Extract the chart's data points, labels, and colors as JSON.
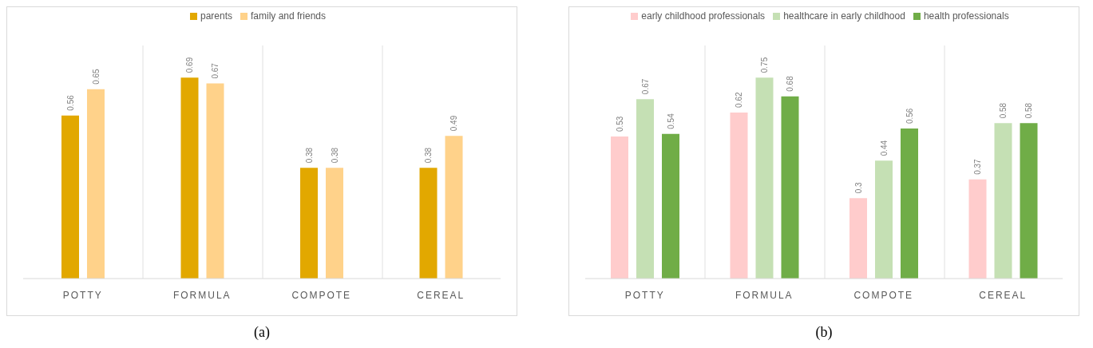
{
  "chart_data": [
    {
      "type": "bar",
      "title": "(a)",
      "categories": [
        "POTTY",
        "FORMULA",
        "COMPOTE",
        "CEREAL"
      ],
      "series": [
        {
          "name": "parents",
          "color": "#e2a800",
          "values": [
            0.56,
            0.69,
            0.38,
            0.38
          ]
        },
        {
          "name": "family and friends",
          "color": "#ffd28a",
          "values": [
            0.65,
            0.67,
            0.38,
            0.49
          ]
        }
      ],
      "data_labels": true,
      "legend": "top",
      "grid": "x",
      "tick_labels": "x"
    },
    {
      "type": "bar",
      "title": "(b)",
      "categories": [
        "POTTY",
        "FORMULA",
        "COMPOTE",
        "CEREAL"
      ],
      "series": [
        {
          "name": "early childhood professionals",
          "color": "#ffcccc",
          "values": [
            0.53,
            0.62,
            0.3,
            0.37
          ]
        },
        {
          "name": "healthcare in early childhood",
          "color": "#c5e0b4",
          "values": [
            0.67,
            0.75,
            0.44,
            0.58
          ]
        },
        {
          "name": "health professionals",
          "color": "#70ad47",
          "values": [
            0.54,
            0.68,
            0.56,
            0.58
          ]
        }
      ],
      "data_labels": true,
      "legend": "top",
      "grid": "x",
      "tick_labels": "x"
    }
  ]
}
